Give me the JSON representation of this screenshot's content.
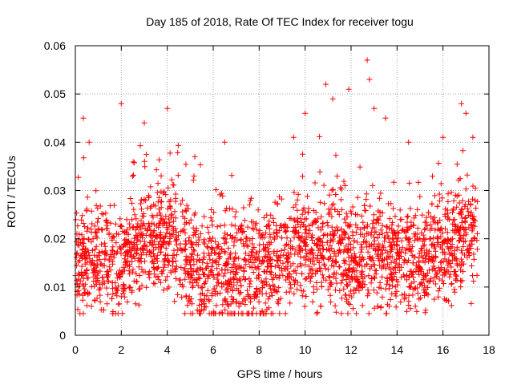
{
  "chart_data": {
    "type": "scatter",
    "title": "Day 185 of 2018, Rate Of TEC Index for receiver togu",
    "xlabel": "GPS time / hours",
    "ylabel": "ROTI / TECUs",
    "xlim": [
      0,
      18
    ],
    "ylim": [
      0,
      0.06
    ],
    "x_ticks": [
      0,
      2,
      4,
      6,
      8,
      10,
      12,
      14,
      16,
      18
    ],
    "y_ticks": [
      0,
      0.01,
      0.02,
      0.03,
      0.04,
      0.05,
      0.06
    ],
    "x_tick_labels": [
      "0",
      "2",
      "4",
      "6",
      "8",
      "10",
      "12",
      "14",
      "16",
      "18"
    ],
    "y_tick_labels": [
      "0",
      "0.01",
      "0.02",
      "0.03",
      "0.04",
      "0.05",
      "0.06"
    ],
    "grid": true,
    "marker": "+",
    "color": "#ff0000",
    "time_range_hours": [
      0,
      17.5
    ],
    "baseline": [
      [
        0,
        0.016
      ],
      [
        2,
        0.014
      ],
      [
        3,
        0.02
      ],
      [
        4,
        0.021
      ],
      [
        5,
        0.015
      ],
      [
        6,
        0.013
      ],
      [
        7,
        0.014
      ],
      [
        8,
        0.013
      ],
      [
        9,
        0.016
      ],
      [
        10,
        0.018
      ],
      [
        11,
        0.018
      ],
      [
        12,
        0.016
      ],
      [
        13,
        0.017
      ],
      [
        14,
        0.016
      ],
      [
        15,
        0.016
      ],
      [
        16,
        0.017
      ],
      [
        17,
        0.02
      ],
      [
        17.5,
        0.018
      ]
    ],
    "highlights": [
      {
        "x": 0.35,
        "y": 0.045
      },
      {
        "x": 0.6,
        "y": 0.04
      },
      {
        "x": 2.0,
        "y": 0.048
      },
      {
        "x": 3.0,
        "y": 0.044
      },
      {
        "x": 4.0,
        "y": 0.047
      },
      {
        "x": 5.2,
        "y": 0.037
      },
      {
        "x": 6.5,
        "y": 0.04
      },
      {
        "x": 9.5,
        "y": 0.041
      },
      {
        "x": 10.0,
        "y": 0.046
      },
      {
        "x": 10.9,
        "y": 0.052
      },
      {
        "x": 11.2,
        "y": 0.049
      },
      {
        "x": 11.9,
        "y": 0.051
      },
      {
        "x": 12.7,
        "y": 0.057
      },
      {
        "x": 12.8,
        "y": 0.053
      },
      {
        "x": 13.0,
        "y": 0.047
      },
      {
        "x": 13.5,
        "y": 0.045
      },
      {
        "x": 14.5,
        "y": 0.04
      },
      {
        "x": 16.0,
        "y": 0.041
      },
      {
        "x": 16.8,
        "y": 0.048
      },
      {
        "x": 17.0,
        "y": 0.046
      },
      {
        "x": 17.3,
        "y": 0.041
      }
    ],
    "point_count": 2600
  }
}
